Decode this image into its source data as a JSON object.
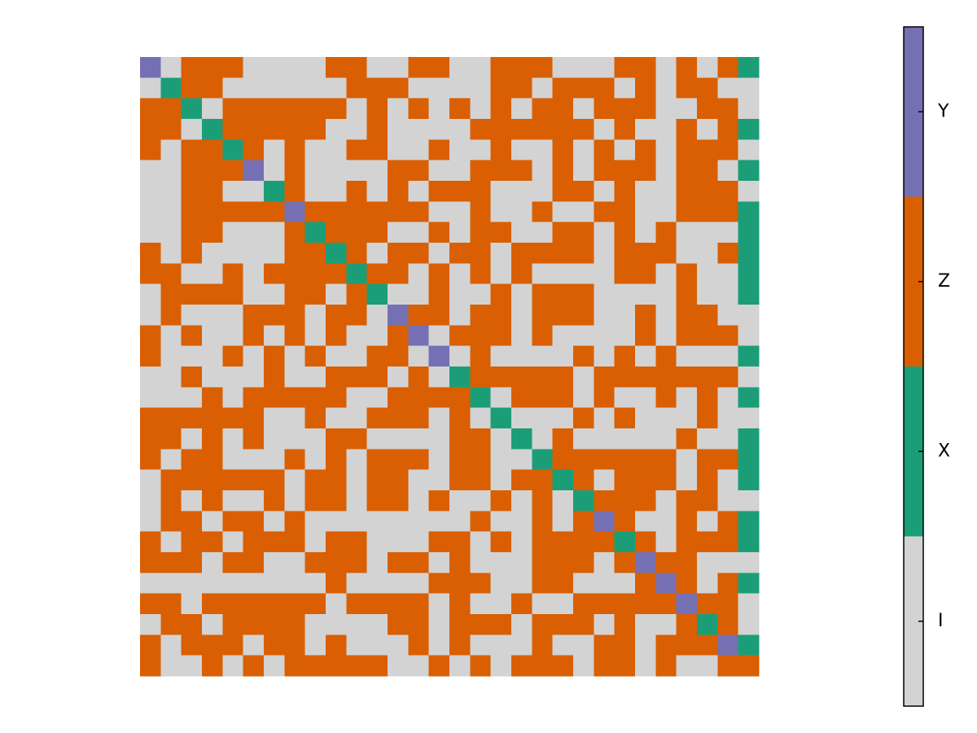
{
  "chart_data": {
    "type": "heatmap",
    "z": [
      [
        3,
        0,
        2,
        2,
        2,
        0,
        0,
        0,
        0,
        2,
        2,
        0,
        0,
        2,
        2,
        0,
        0,
        2,
        2,
        2,
        0,
        0,
        0,
        2,
        2,
        0,
        2,
        0,
        2,
        1
      ],
      [
        0,
        1,
        2,
        2,
        0,
        0,
        0,
        0,
        0,
        0,
        2,
        2,
        2,
        0,
        0,
        0,
        0,
        2,
        2,
        0,
        2,
        2,
        2,
        0,
        2,
        0,
        2,
        2,
        0,
        0
      ],
      [
        2,
        2,
        1,
        0,
        2,
        2,
        2,
        2,
        2,
        2,
        0,
        2,
        0,
        2,
        0,
        2,
        0,
        2,
        0,
        2,
        2,
        0,
        2,
        2,
        2,
        0,
        0,
        2,
        2,
        0
      ],
      [
        2,
        2,
        0,
        1,
        2,
        2,
        2,
        2,
        2,
        0,
        0,
        2,
        0,
        0,
        0,
        0,
        2,
        2,
        2,
        2,
        2,
        2,
        0,
        2,
        0,
        0,
        2,
        0,
        2,
        1
      ],
      [
        2,
        0,
        2,
        2,
        1,
        2,
        0,
        2,
        0,
        0,
        2,
        2,
        0,
        0,
        2,
        0,
        0,
        2,
        0,
        0,
        2,
        0,
        2,
        0,
        2,
        0,
        2,
        2,
        2,
        0
      ],
      [
        0,
        0,
        2,
        2,
        2,
        3,
        0,
        2,
        0,
        0,
        0,
        0,
        2,
        2,
        0,
        0,
        2,
        2,
        2,
        0,
        2,
        0,
        2,
        2,
        2,
        0,
        2,
        2,
        0,
        1
      ],
      [
        0,
        0,
        2,
        2,
        0,
        0,
        1,
        2,
        0,
        0,
        2,
        0,
        2,
        0,
        2,
        2,
        2,
        0,
        0,
        0,
        2,
        2,
        0,
        2,
        0,
        0,
        2,
        2,
        2,
        0
      ],
      [
        0,
        0,
        2,
        2,
        2,
        2,
        2,
        3,
        2,
        2,
        2,
        2,
        2,
        2,
        0,
        0,
        2,
        0,
        0,
        2,
        0,
        0,
        2,
        2,
        0,
        0,
        2,
        2,
        2,
        1
      ],
      [
        0,
        0,
        2,
        2,
        0,
        0,
        0,
        2,
        1,
        2,
        2,
        2,
        0,
        0,
        2,
        0,
        2,
        2,
        0,
        0,
        2,
        2,
        0,
        2,
        0,
        2,
        0,
        0,
        0,
        1
      ],
      [
        2,
        0,
        2,
        0,
        0,
        0,
        0,
        2,
        2,
        1,
        2,
        0,
        2,
        2,
        0,
        2,
        2,
        0,
        2,
        2,
        2,
        2,
        0,
        2,
        2,
        2,
        0,
        0,
        2,
        1
      ],
      [
        2,
        2,
        0,
        0,
        2,
        0,
        2,
        2,
        2,
        2,
        1,
        2,
        2,
        0,
        2,
        0,
        2,
        0,
        2,
        0,
        0,
        0,
        0,
        2,
        2,
        0,
        2,
        0,
        0,
        1
      ],
      [
        0,
        2,
        2,
        2,
        2,
        0,
        0,
        2,
        2,
        0,
        2,
        1,
        0,
        0,
        2,
        0,
        0,
        2,
        0,
        2,
        2,
        2,
        0,
        0,
        0,
        0,
        2,
        0,
        0,
        1
      ],
      [
        0,
        2,
        0,
        0,
        0,
        2,
        2,
        2,
        0,
        2,
        2,
        0,
        3,
        2,
        2,
        0,
        2,
        2,
        0,
        2,
        2,
        2,
        0,
        0,
        2,
        0,
        2,
        2,
        0,
        0
      ],
      [
        2,
        0,
        2,
        0,
        0,
        2,
        0,
        2,
        0,
        2,
        0,
        0,
        2,
        3,
        0,
        2,
        2,
        2,
        0,
        2,
        0,
        0,
        0,
        0,
        2,
        0,
        2,
        2,
        2,
        0
      ],
      [
        2,
        0,
        0,
        0,
        2,
        0,
        2,
        0,
        2,
        0,
        0,
        2,
        2,
        0,
        3,
        0,
        2,
        0,
        0,
        0,
        0,
        2,
        0,
        2,
        0,
        2,
        0,
        0,
        0,
        1
      ],
      [
        0,
        0,
        2,
        0,
        0,
        0,
        2,
        0,
        0,
        2,
        2,
        2,
        0,
        2,
        0,
        1,
        2,
        2,
        2,
        2,
        2,
        0,
        2,
        2,
        2,
        2,
        2,
        2,
        2,
        0
      ],
      [
        0,
        0,
        0,
        2,
        0,
        2,
        2,
        2,
        2,
        2,
        0,
        0,
        2,
        2,
        2,
        2,
        1,
        0,
        2,
        2,
        2,
        0,
        2,
        0,
        0,
        2,
        0,
        2,
        0,
        1
      ],
      [
        2,
        2,
        2,
        2,
        2,
        2,
        0,
        0,
        2,
        0,
        0,
        2,
        2,
        2,
        0,
        2,
        0,
        1,
        0,
        0,
        0,
        2,
        0,
        2,
        0,
        0,
        0,
        2,
        0,
        0
      ],
      [
        2,
        2,
        0,
        2,
        0,
        2,
        0,
        0,
        0,
        2,
        2,
        0,
        0,
        0,
        0,
        2,
        2,
        0,
        1,
        0,
        2,
        0,
        0,
        0,
        0,
        0,
        2,
        0,
        0,
        1
      ],
      [
        2,
        0,
        2,
        2,
        0,
        0,
        0,
        2,
        0,
        2,
        0,
        2,
        2,
        2,
        0,
        2,
        2,
        0,
        0,
        1,
        2,
        2,
        2,
        2,
        2,
        2,
        0,
        2,
        2,
        1
      ],
      [
        0,
        2,
        2,
        2,
        2,
        2,
        2,
        0,
        2,
        2,
        0,
        2,
        2,
        0,
        0,
        2,
        2,
        0,
        2,
        2,
        1,
        2,
        0,
        2,
        2,
        2,
        0,
        2,
        0,
        1
      ],
      [
        0,
        2,
        0,
        2,
        0,
        0,
        2,
        0,
        2,
        2,
        0,
        2,
        2,
        0,
        2,
        0,
        0,
        2,
        0,
        2,
        0,
        1,
        2,
        2,
        2,
        0,
        2,
        2,
        0,
        0
      ],
      [
        0,
        2,
        2,
        0,
        2,
        2,
        0,
        2,
        0,
        0,
        0,
        0,
        0,
        0,
        0,
        0,
        2,
        0,
        0,
        2,
        0,
        2,
        3,
        2,
        0,
        0,
        2,
        0,
        2,
        1
      ],
      [
        2,
        0,
        2,
        2,
        0,
        2,
        2,
        2,
        0,
        2,
        2,
        0,
        0,
        0,
        2,
        2,
        0,
        2,
        0,
        2,
        2,
        2,
        2,
        1,
        2,
        0,
        2,
        2,
        2,
        1
      ],
      [
        2,
        2,
        2,
        0,
        2,
        2,
        0,
        0,
        2,
        2,
        2,
        0,
        2,
        2,
        0,
        2,
        0,
        0,
        0,
        2,
        2,
        2,
        0,
        2,
        3,
        2,
        2,
        0,
        0,
        0
      ],
      [
        0,
        0,
        0,
        0,
        0,
        0,
        0,
        0,
        0,
        2,
        0,
        0,
        0,
        0,
        2,
        2,
        2,
        0,
        0,
        2,
        2,
        0,
        0,
        0,
        2,
        3,
        2,
        0,
        2,
        1
      ],
      [
        2,
        2,
        0,
        2,
        2,
        2,
        2,
        2,
        2,
        0,
        2,
        2,
        2,
        2,
        0,
        2,
        0,
        0,
        2,
        0,
        0,
        2,
        2,
        2,
        2,
        2,
        3,
        2,
        2,
        0
      ],
      [
        0,
        2,
        2,
        0,
        2,
        2,
        2,
        2,
        0,
        0,
        0,
        0,
        2,
        2,
        0,
        2,
        2,
        2,
        0,
        2,
        2,
        2,
        0,
        2,
        0,
        0,
        2,
        1,
        2,
        0
      ],
      [
        2,
        0,
        2,
        2,
        2,
        0,
        2,
        2,
        0,
        2,
        0,
        0,
        0,
        2,
        0,
        2,
        0,
        0,
        0,
        2,
        0,
        0,
        2,
        2,
        0,
        2,
        2,
        2,
        3,
        1
      ],
      [
        2,
        0,
        0,
        2,
        0,
        2,
        0,
        2,
        2,
        2,
        2,
        2,
        0,
        0,
        2,
        0,
        2,
        0,
        2,
        2,
        2,
        0,
        2,
        2,
        0,
        2,
        0,
        0,
        2,
        2
      ]
    ],
    "colors": [
      "#d3d3d3",
      "#1b9e77",
      "#d95f02",
      "#7570b3"
    ],
    "clim": [
      -0.5,
      3.5
    ],
    "cticks": [
      {
        "value": 0,
        "label": "I"
      },
      {
        "value": 1,
        "label": "X"
      },
      {
        "value": 2,
        "label": "Z"
      },
      {
        "value": 3,
        "label": "Y"
      }
    ]
  }
}
